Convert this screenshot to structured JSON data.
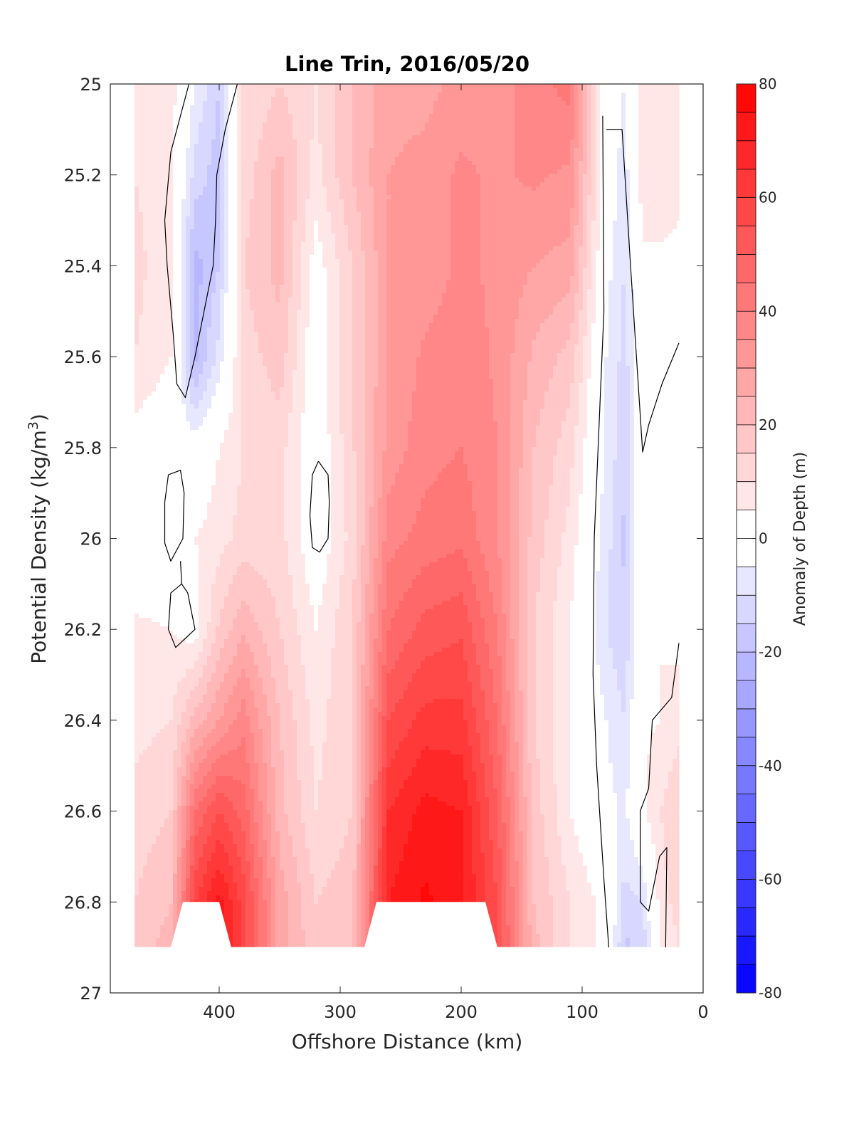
{
  "chart_data": {
    "type": "heatmap",
    "title": "Line Trin, 2016/05/20",
    "xlabel": "Offshore Distance (km)",
    "ylabel_main": "Potential Density (kg/m",
    "ylabel_sup": "3",
    "ylabel_close": ")",
    "xlim": [
      490,
      0
    ],
    "ylim": [
      25,
      27
    ],
    "y_reversed": true,
    "x_ticks": [
      400,
      300,
      200,
      100,
      0
    ],
    "x_tick_labels": [
      "400",
      "300",
      "200",
      "100",
      "0"
    ],
    "y_ticks": [
      25,
      25.2,
      25.4,
      25.6,
      25.8,
      26,
      26.2,
      26.4,
      26.6,
      26.8,
      27
    ],
    "y_tick_labels": [
      "25",
      "25.2",
      "25.4",
      "25.6",
      "25.8",
      "26",
      "26.2",
      "26.4",
      "26.6",
      "26.8",
      "27"
    ],
    "colorbar": {
      "label": "Anomaly of Depth (m)",
      "range": [
        -80,
        80
      ],
      "levels_step": 5,
      "ticks": [
        80,
        60,
        40,
        20,
        0,
        -20,
        -40,
        -60,
        -80
      ],
      "tick_labels": [
        "80",
        "60",
        "40",
        "20",
        "0",
        "-20",
        "-40",
        "-60",
        "-80"
      ],
      "low_color": "#0000ff",
      "mid_color": "#ffffff",
      "high_color": "#ff0000"
    },
    "data_extent": {
      "x": [
        470,
        20
      ],
      "y": [
        25,
        26.9
      ]
    },
    "grid": {
      "x": [
        470,
        440,
        420,
        400,
        380,
        350,
        320,
        290,
        260,
        230,
        200,
        170,
        140,
        110,
        80,
        65,
        50,
        35,
        20
      ],
      "y": [
        25,
        25.2,
        25.4,
        25.6,
        25.8,
        26,
        26.2,
        26.4,
        26.6,
        26.8,
        26.9
      ],
      "z": [
        [
          8,
          8,
          -5,
          -15,
          10,
          15,
          10,
          20,
          28,
          28,
          32,
          32,
          38,
          42,
          0,
          -5,
          10,
          10,
          6
        ],
        [
          10,
          6,
          -12,
          -18,
          12,
          22,
          8,
          20,
          30,
          32,
          36,
          34,
          36,
          34,
          0,
          -8,
          8,
          8,
          6
        ],
        [
          12,
          6,
          -22,
          -15,
          15,
          22,
          2,
          15,
          30,
          32,
          36,
          34,
          30,
          28,
          -3,
          -10,
          4,
          4,
          4
        ],
        [
          10,
          5,
          -22,
          -8,
          12,
          18,
          0,
          15,
          30,
          36,
          38,
          34,
          24,
          18,
          -5,
          -12,
          0,
          -3,
          3
        ],
        [
          2,
          0,
          -2,
          5,
          10,
          12,
          0,
          14,
          32,
          38,
          40,
          35,
          20,
          12,
          -6,
          -14,
          2,
          3,
          4
        ],
        [
          0,
          0,
          5,
          8,
          12,
          12,
          0,
          12,
          38,
          42,
          44,
          35,
          18,
          8,
          -8,
          -16,
          2,
          4,
          2
        ],
        [
          6,
          5,
          2,
          16,
          24,
          15,
          5,
          15,
          45,
          52,
          54,
          40,
          15,
          5,
          -10,
          -14,
          2,
          5,
          3
        ],
        [
          8,
          10,
          22,
          30,
          38,
          20,
          8,
          15,
          55,
          62,
          62,
          45,
          15,
          5,
          -5,
          -10,
          4,
          5,
          8
        ],
        [
          12,
          15,
          45,
          55,
          48,
          22,
          10,
          15,
          65,
          72,
          70,
          50,
          18,
          5,
          -3,
          -6,
          4,
          10,
          15
        ],
        [
          15,
          20,
          60,
          72,
          58,
          28,
          15,
          18,
          70,
          76,
          72,
          55,
          20,
          10,
          3,
          -12,
          -10,
          8,
          12
        ],
        [
          18,
          22,
          60,
          72,
          58,
          28,
          16,
          18,
          70,
          76,
          72,
          55,
          22,
          10,
          3,
          -16,
          -14,
          6,
          10
        ]
      ]
    },
    "masked_regions": [
      [
        [
          430,
          26.8
        ],
        [
          400,
          26.8
        ],
        [
          390,
          26.9
        ],
        [
          440,
          26.9
        ]
      ],
      [
        [
          270,
          26.8
        ],
        [
          180,
          26.8
        ],
        [
          170,
          26.9
        ],
        [
          280,
          26.9
        ]
      ]
    ],
    "contours_zero": [
      [
        [
          425,
          25.0
        ],
        [
          440,
          25.15
        ],
        [
          445,
          25.3
        ],
        [
          443,
          25.4
        ],
        [
          438,
          25.55
        ],
        [
          435,
          25.66
        ],
        [
          428,
          25.69
        ],
        [
          420,
          25.6
        ],
        [
          405,
          25.4
        ],
        [
          403,
          25.3
        ],
        [
          402,
          25.2
        ],
        [
          395,
          25.1
        ],
        [
          385,
          25.0
        ]
      ],
      [
        [
          442,
          25.86
        ],
        [
          445,
          25.92
        ],
        [
          445,
          26.01
        ],
        [
          440,
          26.05
        ],
        [
          430,
          26.0
        ],
        [
          429,
          25.9
        ],
        [
          432,
          25.85
        ],
        [
          442,
          25.86
        ]
      ],
      [
        [
          432,
          26.05
        ],
        [
          431,
          26.1
        ],
        [
          440,
          26.12
        ],
        [
          442,
          26.2
        ],
        [
          436,
          26.24
        ],
        [
          428,
          26.22
        ],
        [
          420,
          26.2
        ],
        [
          426,
          26.12
        ],
        [
          431,
          26.1
        ]
      ],
      [
        [
          318,
          25.83
        ],
        [
          323,
          25.86
        ],
        [
          325,
          25.95
        ],
        [
          323,
          26.02
        ],
        [
          317,
          26.03
        ],
        [
          310,
          26.0
        ],
        [
          309,
          25.92
        ],
        [
          310,
          25.86
        ],
        [
          318,
          25.83
        ]
      ],
      [
        [
          83,
          25.07
        ],
        [
          82,
          25.5
        ],
        [
          90,
          26.0
        ],
        [
          91,
          26.3
        ],
        [
          88,
          26.5
        ],
        [
          82,
          26.75
        ],
        [
          78,
          26.9
        ]
      ],
      [
        [
          80,
          25.1
        ],
        [
          75,
          25.1
        ],
        [
          67,
          25.1
        ],
        [
          60,
          25.4
        ],
        [
          50,
          25.81
        ],
        [
          45,
          25.75
        ],
        [
          34,
          25.66
        ],
        [
          20,
          25.57
        ]
      ],
      [
        [
          20,
          26.23
        ],
        [
          26,
          26.35
        ],
        [
          42,
          26.4
        ],
        [
          45,
          26.55
        ],
        [
          52,
          26.6
        ],
        [
          52,
          26.8
        ],
        [
          45,
          26.82
        ],
        [
          36,
          26.7
        ],
        [
          30,
          26.68
        ],
        [
          31,
          26.9
        ]
      ]
    ]
  }
}
